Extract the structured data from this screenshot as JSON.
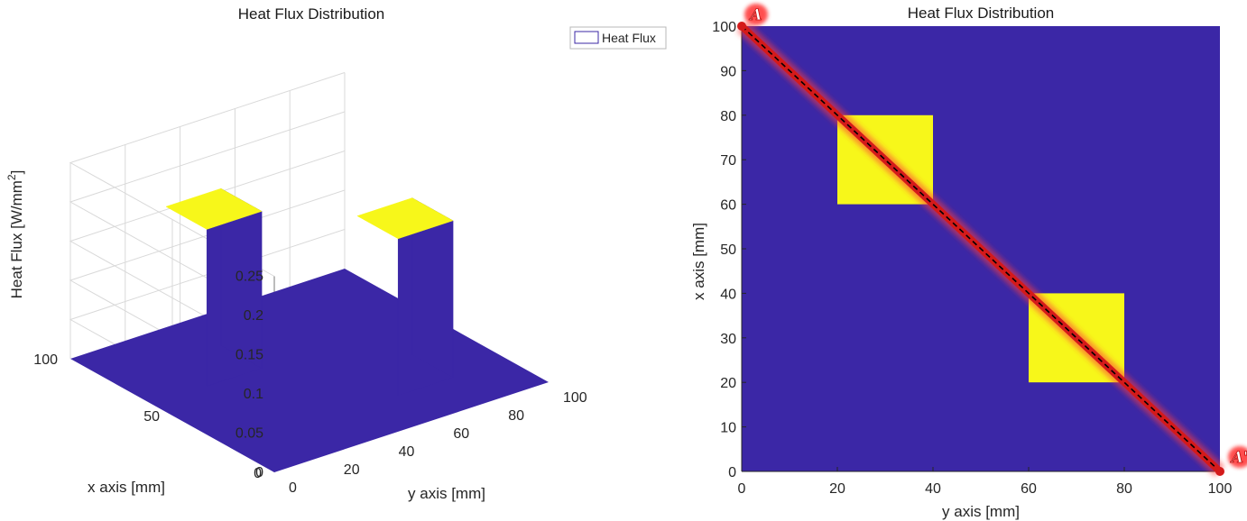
{
  "colors": {
    "low": "#3b27a6",
    "high": "#f7f71a",
    "line": "#d41a1a",
    "glow": "#ff3b3b",
    "dash": "#000000",
    "grid": "#d9d9d9",
    "axis": "#262626"
  },
  "chart_data": [
    {
      "id": "left",
      "type": "surface3d",
      "title": "Heat Flux Distribution",
      "xlabel": "x axis [mm]",
      "ylabel": "y axis [mm]",
      "zlabel": "Heat Flux [W/mm",
      "zlabel_sup": "2",
      "zlabel_end": "]",
      "xlim": [
        0,
        100
      ],
      "ylim": [
        0,
        100
      ],
      "zlim": [
        0,
        0.25
      ],
      "x_ticks": [
        "0",
        "50",
        "100"
      ],
      "x_tick_values": [
        0,
        50,
        100
      ],
      "y_ticks": [
        "0",
        "20",
        "40",
        "60",
        "80",
        "100"
      ],
      "y_tick_values": [
        0,
        20,
        40,
        60,
        80,
        100
      ],
      "z_ticks": [
        "0",
        "0.05",
        "0.1",
        "0.15",
        "0.2",
        "0.25"
      ],
      "z_tick_values": [
        0,
        0.05,
        0.1,
        0.15,
        0.2,
        0.25
      ],
      "legend": "Heat Flux",
      "legend_position": "top-right",
      "base_value": 0,
      "pads": [
        {
          "x": [
            60,
            80
          ],
          "y": [
            20,
            40
          ],
          "z": 0.2
        },
        {
          "x": [
            20,
            40
          ],
          "y": [
            60,
            80
          ],
          "z": 0.2
        }
      ]
    },
    {
      "id": "right",
      "type": "heatmap",
      "title": "Heat Flux Distribution",
      "xlabel": "y axis [mm]",
      "ylabel": "x axis [mm]",
      "xlim": [
        0,
        100
      ],
      "ylim": [
        0,
        100
      ],
      "x_ticks": [
        "0",
        "20",
        "40",
        "60",
        "80",
        "100"
      ],
      "x_tick_values": [
        0,
        20,
        40,
        60,
        80,
        100
      ],
      "y_ticks": [
        "0",
        "10",
        "20",
        "30",
        "40",
        "50",
        "60",
        "70",
        "80",
        "90",
        "100"
      ],
      "y_tick_values": [
        0,
        10,
        20,
        30,
        40,
        50,
        60,
        70,
        80,
        90,
        100
      ],
      "pads": [
        {
          "h": [
            20,
            40
          ],
          "v": [
            60,
            80
          ]
        },
        {
          "h": [
            60,
            80
          ],
          "v": [
            20,
            40
          ]
        }
      ],
      "section_line": {
        "from": [
          0,
          100
        ],
        "to": [
          100,
          0
        ]
      },
      "markers": [
        {
          "label": "A",
          "at": [
            0,
            100
          ]
        },
        {
          "label": "A'",
          "at": [
            100,
            0
          ]
        }
      ]
    }
  ]
}
